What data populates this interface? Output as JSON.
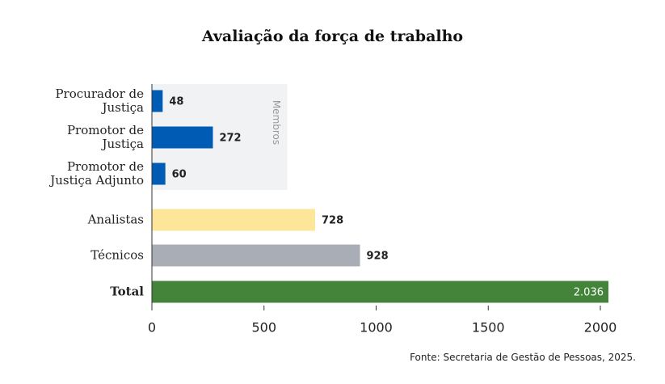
{
  "chart_data": {
    "type": "bar",
    "orientation": "horizontal",
    "title": "Avaliação da força de trabalho",
    "source": "Fonte: Secretaria de Gestão de Pessoas, 2025.",
    "categories": [
      "Procurador de\nJustiça",
      "Promotor de\nJustiça",
      "Promotor de\nJustiça Adjunto",
      "Analistas",
      "Técnicos",
      "Total"
    ],
    "values": [
      48,
      272,
      60,
      728,
      928,
      2036
    ],
    "value_labels": [
      "48",
      "272",
      "60",
      "728",
      "928",
      "2.036"
    ],
    "colors": [
      "#005bb5",
      "#005bb5",
      "#005bb5",
      "#fde69a",
      "#a9adb5",
      "#43833a"
    ],
    "bold": [
      false,
      false,
      false,
      false,
      false,
      true
    ],
    "label_inside": [
      false,
      false,
      false,
      false,
      false,
      true
    ],
    "group": {
      "label": "Membros",
      "categories": [
        0,
        1,
        2
      ],
      "color": "#f1f2f4"
    },
    "xlim": [
      0,
      2036
    ],
    "xticks": [
      0,
      500,
      1000,
      1500,
      2000
    ]
  }
}
